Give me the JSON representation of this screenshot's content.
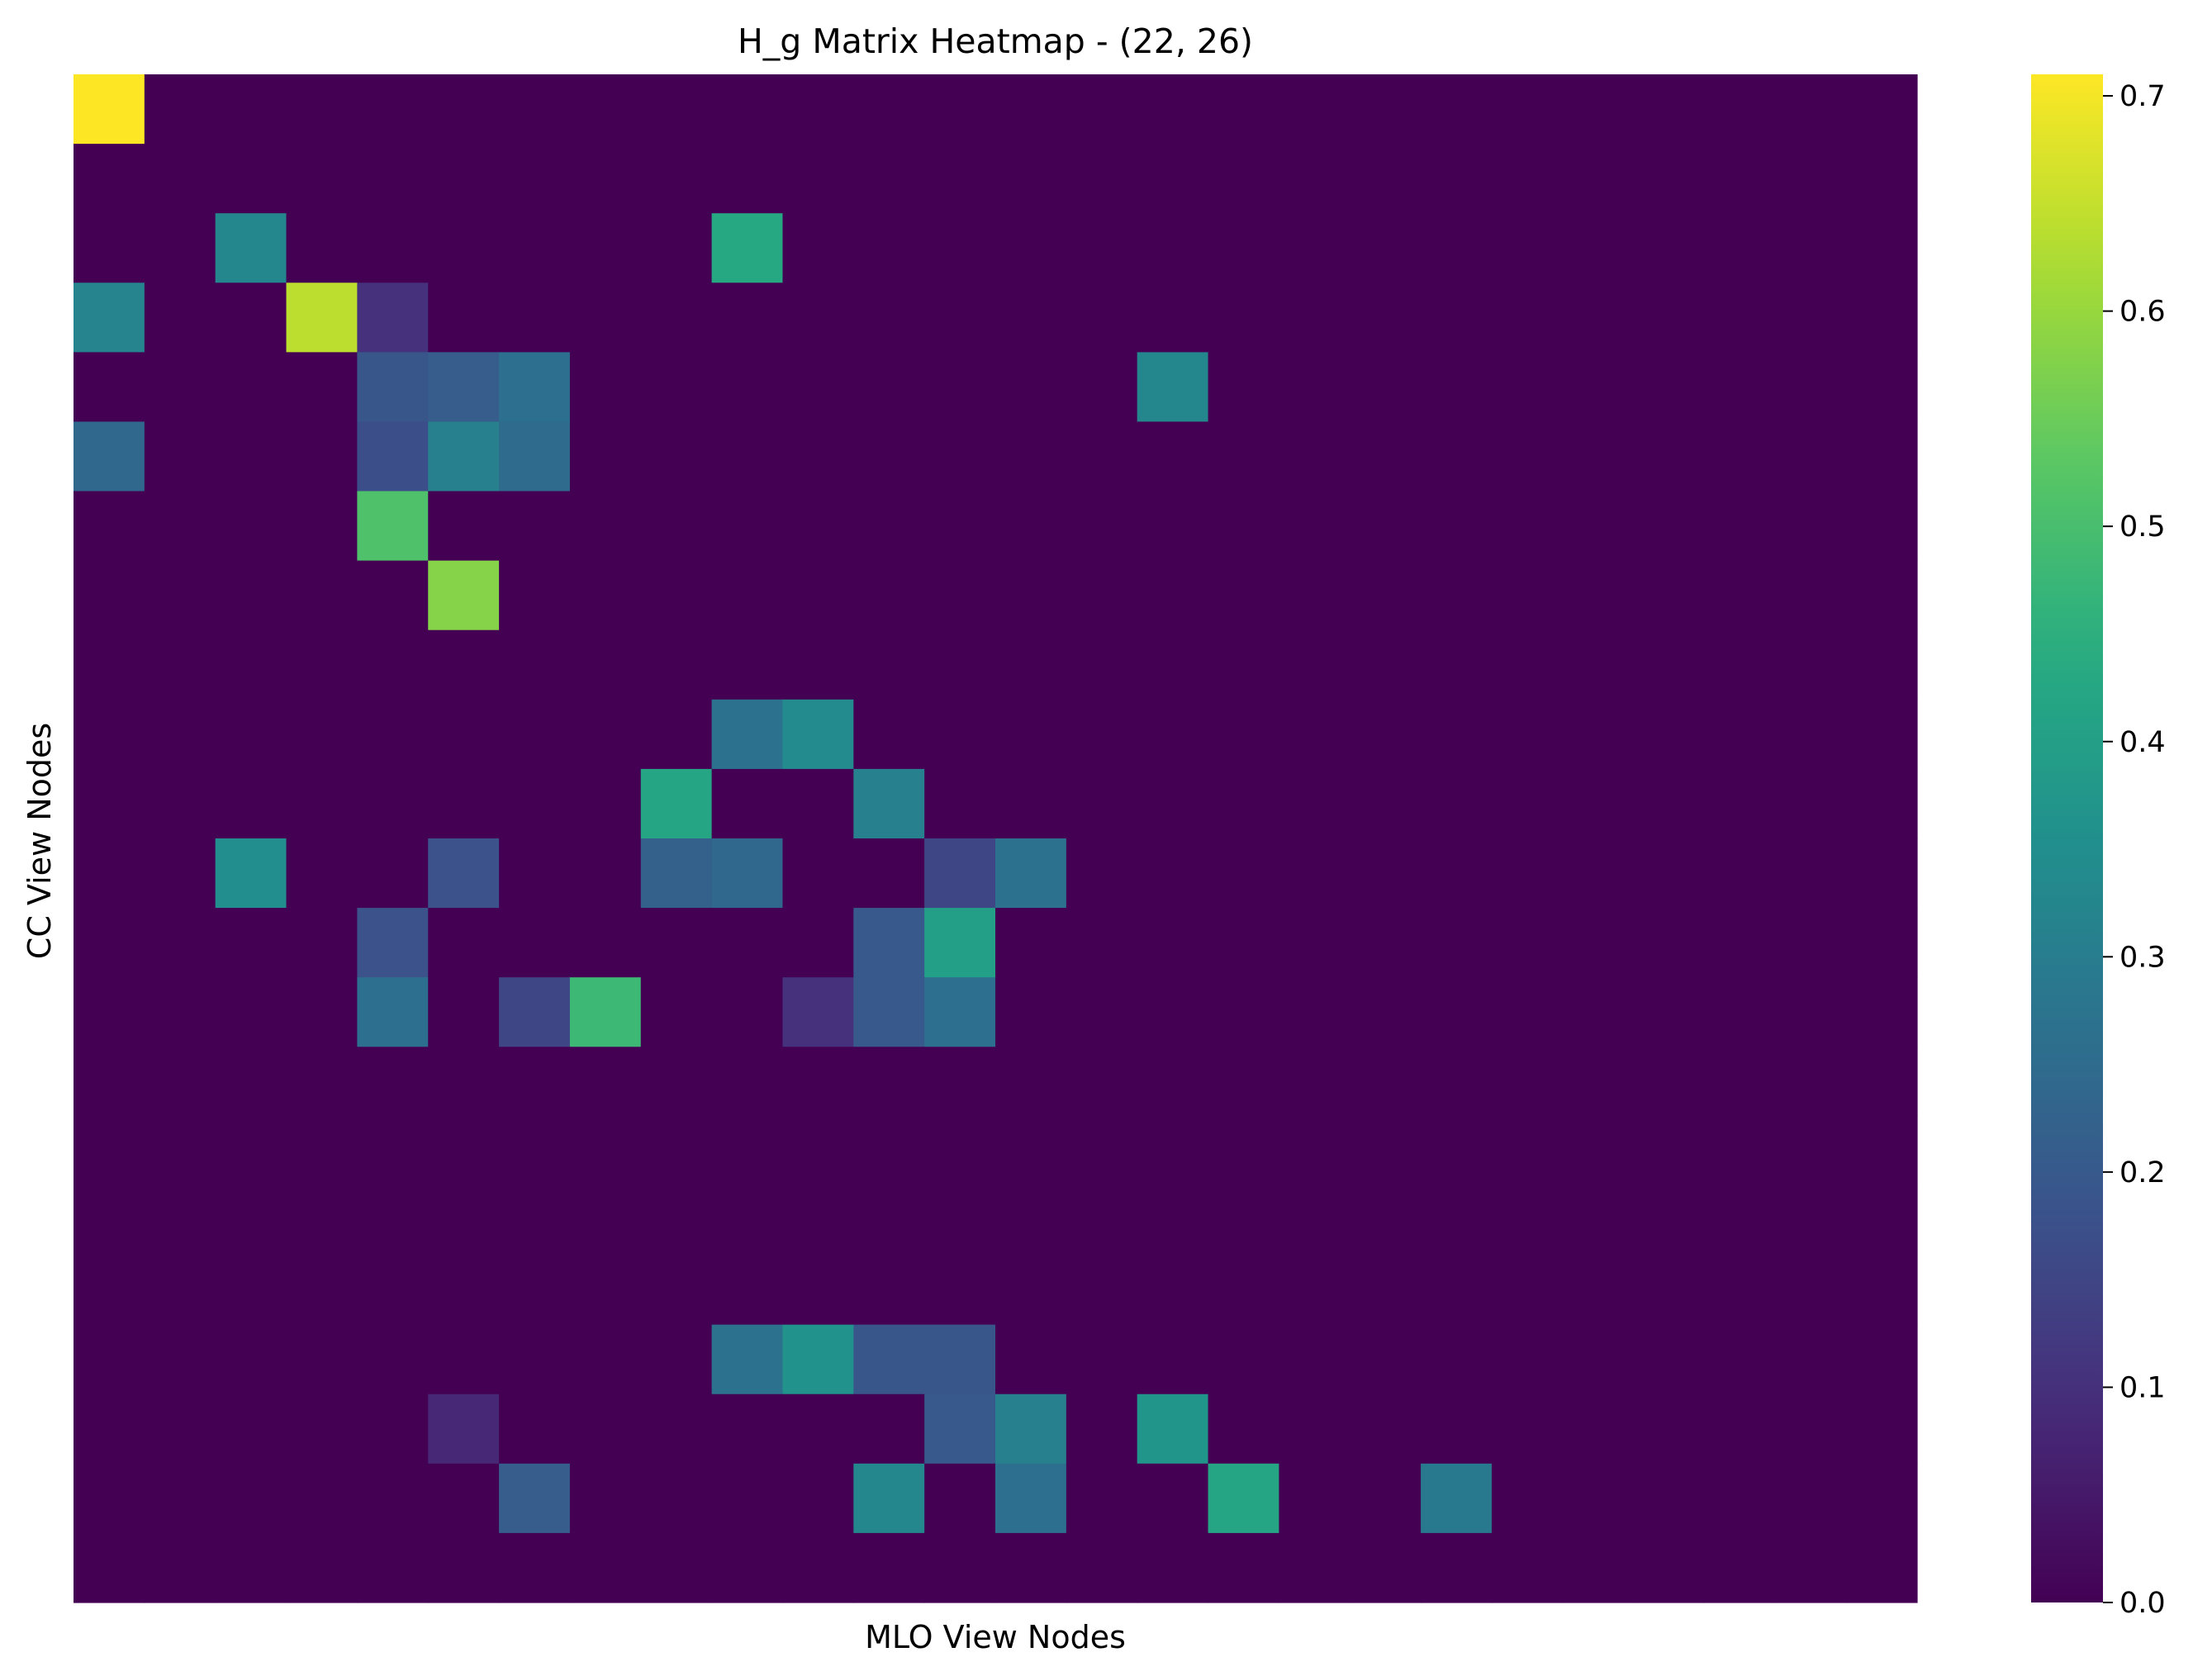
{
  "chart_data": {
    "type": "heatmap",
    "title": "H_g Matrix Heatmap - (22, 26)",
    "xlabel": "MLO View Nodes",
    "ylabel": "CC View Nodes",
    "n_rows": 22,
    "n_cols": 26,
    "colormap": "viridis",
    "colorbar": {
      "vmin": 0.0,
      "vmax": 0.71,
      "ticks": [
        0.0,
        0.1,
        0.2,
        0.3,
        0.4,
        0.5,
        0.6,
        0.7
      ],
      "tick_labels": [
        "0.0",
        "0.1",
        "0.2",
        "0.3",
        "0.4",
        "0.5",
        "0.6",
        "0.7"
      ]
    },
    "x_tick_labels_shown": false,
    "y_tick_labels_shown": false,
    "cells": [
      {
        "row": 0,
        "col": 0,
        "value": 0.71
      },
      {
        "row": 2,
        "col": 2,
        "value": 0.33
      },
      {
        "row": 2,
        "col": 9,
        "value": 0.43
      },
      {
        "row": 3,
        "col": 0,
        "value": 0.32
      },
      {
        "row": 3,
        "col": 3,
        "value": 0.64
      },
      {
        "row": 3,
        "col": 4,
        "value": 0.1
      },
      {
        "row": 4,
        "col": 4,
        "value": 0.19
      },
      {
        "row": 4,
        "col": 5,
        "value": 0.21
      },
      {
        "row": 4,
        "col": 6,
        "value": 0.26
      },
      {
        "row": 4,
        "col": 15,
        "value": 0.33
      },
      {
        "row": 5,
        "col": 0,
        "value": 0.24
      },
      {
        "row": 5,
        "col": 4,
        "value": 0.17
      },
      {
        "row": 5,
        "col": 5,
        "value": 0.31
      },
      {
        "row": 5,
        "col": 6,
        "value": 0.25
      },
      {
        "row": 6,
        "col": 4,
        "value": 0.51
      },
      {
        "row": 7,
        "col": 5,
        "value": 0.58
      },
      {
        "row": 9,
        "col": 9,
        "value": 0.27
      },
      {
        "row": 9,
        "col": 10,
        "value": 0.34
      },
      {
        "row": 10,
        "col": 8,
        "value": 0.42
      },
      {
        "row": 10,
        "col": 11,
        "value": 0.31
      },
      {
        "row": 11,
        "col": 2,
        "value": 0.35
      },
      {
        "row": 11,
        "col": 5,
        "value": 0.18
      },
      {
        "row": 11,
        "col": 8,
        "value": 0.22
      },
      {
        "row": 11,
        "col": 9,
        "value": 0.24
      },
      {
        "row": 11,
        "col": 12,
        "value": 0.15
      },
      {
        "row": 11,
        "col": 13,
        "value": 0.27
      },
      {
        "row": 12,
        "col": 4,
        "value": 0.18
      },
      {
        "row": 12,
        "col": 11,
        "value": 0.2
      },
      {
        "row": 12,
        "col": 12,
        "value": 0.4
      },
      {
        "row": 13,
        "col": 4,
        "value": 0.26
      },
      {
        "row": 13,
        "col": 6,
        "value": 0.15
      },
      {
        "row": 13,
        "col": 7,
        "value": 0.48
      },
      {
        "row": 13,
        "col": 10,
        "value": 0.1
      },
      {
        "row": 13,
        "col": 11,
        "value": 0.2
      },
      {
        "row": 13,
        "col": 12,
        "value": 0.26
      },
      {
        "row": 18,
        "col": 9,
        "value": 0.27
      },
      {
        "row": 18,
        "col": 10,
        "value": 0.36
      },
      {
        "row": 18,
        "col": 11,
        "value": 0.19
      },
      {
        "row": 18,
        "col": 12,
        "value": 0.19
      },
      {
        "row": 19,
        "col": 5,
        "value": 0.08
      },
      {
        "row": 19,
        "col": 12,
        "value": 0.2
      },
      {
        "row": 19,
        "col": 13,
        "value": 0.31
      },
      {
        "row": 19,
        "col": 15,
        "value": 0.37
      },
      {
        "row": 20,
        "col": 6,
        "value": 0.21
      },
      {
        "row": 20,
        "col": 11,
        "value": 0.33
      },
      {
        "row": 20,
        "col": 13,
        "value": 0.26
      },
      {
        "row": 20,
        "col": 16,
        "value": 0.42
      },
      {
        "row": 20,
        "col": 19,
        "value": 0.29
      }
    ]
  }
}
